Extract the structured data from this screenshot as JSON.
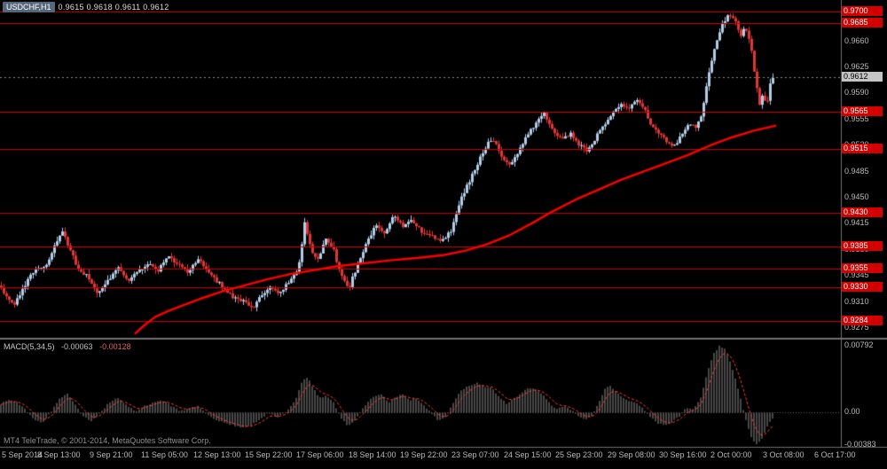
{
  "window": {
    "symbol_tab": "USDCHF,H1",
    "ohlc_text": "0.9615 0.9618 0.9611 0.9612"
  },
  "colors": {
    "background": "#000000",
    "bull": "#b3cde8",
    "bear": "#e03636",
    "ma_line": "#ff0000",
    "hline": "#cc0000",
    "hline_badge_bg": "#d40000",
    "price_badge_bg": "#c4c4c4",
    "scale_text": "#b9b9b9",
    "separator": "#707070",
    "macd_hist": "#484848",
    "macd_signal": "#ff3b3b"
  },
  "price_scale": {
    "ticks": [
      "0.9660",
      "0.9625",
      "0.9590",
      "0.9555",
      "0.9520",
      "0.9485",
      "0.9450",
      "0.9415",
      "0.9380",
      "0.9345",
      "0.9310",
      "0.9275"
    ],
    "level_badges": [
      "0.9700",
      "0.9685",
      "0.9565",
      "0.9515",
      "0.9430",
      "0.9385",
      "0.9355",
      "0.9330",
      "0.9284"
    ],
    "current_badge": "0.9612"
  },
  "time_axis": {
    "labels": [
      "5 Sep 2014",
      "8 Sep 13:00",
      "9 Sep 21:00",
      "11 Sep 05:00",
      "12 Sep 13:00",
      "15 Sep 22:00",
      "17 Sep 06:00",
      "18 Sep 14:00",
      "19 Sep 22:00",
      "23 Sep 07:00",
      "24 Sep 15:00",
      "25 Sep 23:00",
      "29 Sep 08:00",
      "30 Sep 16:00",
      "2 Oct 00:00",
      "3 Oct 08:00",
      "6 Oct 17:00"
    ]
  },
  "macd_panel": {
    "label": "MACD(5,34,5)",
    "value_main": "-0.00063",
    "value_signal": "-0.00128",
    "scale": [
      "0.00792",
      "0.00",
      "-0.00383"
    ]
  },
  "footer": {
    "copyright": "MT4 TeleTrade, © 2001-2014, MetaQuotes Software Corp."
  },
  "chart_data": [
    {
      "type": "candlestick",
      "symbol": "USDCHF",
      "timeframe": "H1",
      "title": "USDCHF,H1",
      "header_ohlc": {
        "open": 0.9615,
        "high": 0.9618,
        "low": 0.9611,
        "close": 0.9612
      },
      "bid": 0.9612,
      "ylim": [
        0.92655,
        0.9706
      ],
      "grid": "off",
      "y_tick_labels": [
        0.966,
        0.9625,
        0.959,
        0.9555,
        0.952,
        0.9485,
        0.945,
        0.9415,
        0.938,
        0.9345,
        0.931,
        0.9275
      ],
      "hlines": [
        0.97,
        0.9685,
        0.9565,
        0.9515,
        0.943,
        0.9385,
        0.9355,
        0.933,
        0.9284
      ],
      "ma_note": "thick red rising moving-average line",
      "x_tick_labels": [
        "5 Sep 2014",
        "8 Sep 13:00",
        "9 Sep 21:00",
        "11 Sep 05:00",
        "12 Sep 13:00",
        "15 Sep 22:00",
        "17 Sep 06:00",
        "18 Sep 14:00",
        "19 Sep 22:00",
        "23 Sep 07:00",
        "24 Sep 15:00",
        "25 Sep 23:00",
        "29 Sep 08:00",
        "30 Sep 16:00",
        "2 Oct 00:00",
        "3 Oct 08:00",
        "6 Oct 17:00"
      ],
      "close_path": [
        [
          0,
          0.9332
        ],
        [
          10,
          0.9318
        ],
        [
          18,
          0.9306
        ],
        [
          28,
          0.933
        ],
        [
          40,
          0.9352
        ],
        [
          55,
          0.9361
        ],
        [
          65,
          0.9392
        ],
        [
          72,
          0.9404
        ],
        [
          80,
          0.9381
        ],
        [
          90,
          0.9353
        ],
        [
          100,
          0.9346
        ],
        [
          112,
          0.9322
        ],
        [
          125,
          0.9342
        ],
        [
          135,
          0.9356
        ],
        [
          145,
          0.9338
        ],
        [
          158,
          0.9352
        ],
        [
          170,
          0.9363
        ],
        [
          180,
          0.9351
        ],
        [
          190,
          0.9372
        ],
        [
          202,
          0.936
        ],
        [
          214,
          0.9351
        ],
        [
          226,
          0.9366
        ],
        [
          238,
          0.9349
        ],
        [
          250,
          0.9333
        ],
        [
          262,
          0.9319
        ],
        [
          275,
          0.9311
        ],
        [
          288,
          0.9303
        ],
        [
          296,
          0.9319
        ],
        [
          306,
          0.9333
        ],
        [
          316,
          0.9321
        ],
        [
          326,
          0.9336
        ],
        [
          338,
          0.9352
        ],
        [
          345,
          0.9416
        ],
        [
          352,
          0.9381
        ],
        [
          360,
          0.9366
        ],
        [
          368,
          0.9396
        ],
        [
          376,
          0.9386
        ],
        [
          386,
          0.9346
        ],
        [
          395,
          0.9329
        ],
        [
          405,
          0.9361
        ],
        [
          415,
          0.9391
        ],
        [
          425,
          0.9413
        ],
        [
          435,
          0.9401
        ],
        [
          445,
          0.9426
        ],
        [
          455,
          0.9411
        ],
        [
          465,
          0.9421
        ],
        [
          476,
          0.9406
        ],
        [
          488,
          0.9399
        ],
        [
          500,
          0.9393
        ],
        [
          510,
          0.9406
        ],
        [
          520,
          0.9446
        ],
        [
          530,
          0.9471
        ],
        [
          540,
          0.9496
        ],
        [
          550,
          0.9521
        ],
        [
          558,
          0.9528
        ],
        [
          566,
          0.9506
        ],
        [
          576,
          0.9496
        ],
        [
          586,
          0.9511
        ],
        [
          596,
          0.9536
        ],
        [
          606,
          0.9551
        ],
        [
          615,
          0.9563
        ],
        [
          625,
          0.9541
        ],
        [
          635,
          0.9526
        ],
        [
          645,
          0.9536
        ],
        [
          655,
          0.9521
        ],
        [
          663,
          0.9511
        ],
        [
          671,
          0.9526
        ],
        [
          681,
          0.9546
        ],
        [
          691,
          0.9563
        ],
        [
          701,
          0.9576
        ],
        [
          710,
          0.9569
        ],
        [
          718,
          0.9581
        ],
        [
          726,
          0.9573
        ],
        [
          735,
          0.9551
        ],
        [
          745,
          0.9536
        ],
        [
          755,
          0.9523
        ],
        [
          762,
          0.9519
        ],
        [
          770,
          0.9536
        ],
        [
          778,
          0.9549
        ],
        [
          786,
          0.9543
        ],
        [
          793,
          0.9561
        ],
        [
          800,
          0.9612
        ],
        [
          808,
          0.9656
        ],
        [
          815,
          0.9681
        ],
        [
          822,
          0.9693
        ],
        [
          830,
          0.9689
        ],
        [
          836,
          0.9666
        ],
        [
          842,
          0.9681
        ],
        [
          848,
          0.9656
        ],
        [
          854,
          0.9601
        ],
        [
          858,
          0.9576
        ],
        [
          862,
          0.9589
        ],
        [
          866,
          0.9571
        ],
        [
          870,
          0.9601
        ],
        [
          874,
          0.9612
        ]
      ],
      "ma_path": [
        [
          152,
          0.9267
        ],
        [
          162,
          0.9278
        ],
        [
          175,
          0.929
        ],
        [
          190,
          0.9298
        ],
        [
          205,
          0.9305
        ],
        [
          225,
          0.9314
        ],
        [
          250,
          0.9324
        ],
        [
          275,
          0.9332
        ],
        [
          300,
          0.934
        ],
        [
          325,
          0.9347
        ],
        [
          350,
          0.9352
        ],
        [
          380,
          0.9358
        ],
        [
          410,
          0.9362
        ],
        [
          440,
          0.9366
        ],
        [
          470,
          0.9369
        ],
        [
          500,
          0.9373
        ],
        [
          525,
          0.9379
        ],
        [
          550,
          0.9388
        ],
        [
          575,
          0.94
        ],
        [
          600,
          0.9416
        ],
        [
          625,
          0.9433
        ],
        [
          650,
          0.9448
        ],
        [
          675,
          0.9461
        ],
        [
          700,
          0.9474
        ],
        [
          725,
          0.9485
        ],
        [
          750,
          0.9496
        ],
        [
          775,
          0.9507
        ],
        [
          800,
          0.952
        ],
        [
          825,
          0.9531
        ],
        [
          850,
          0.954
        ],
        [
          875,
          0.9547
        ]
      ]
    },
    {
      "type": "bar",
      "name": "MACD(5,34,5)",
      "current_main": -0.00063,
      "current_signal": -0.00128,
      "ylim": [
        -0.00395,
        0.00805
      ],
      "y_ticks": [
        0.00792,
        0.0,
        -0.00383
      ],
      "legend": "dark histogram = MACD main, red dashed = signal",
      "macd_path": [
        [
          0,
          0.0008
        ],
        [
          10,
          0.0015
        ],
        [
          20,
          0.0013
        ],
        [
          30,
          0.0005
        ],
        [
          40,
          -0.0008
        ],
        [
          50,
          -0.0012
        ],
        [
          60,
          0.0002
        ],
        [
          70,
          0.0018
        ],
        [
          78,
          0.0022
        ],
        [
          88,
          0.0008
        ],
        [
          95,
          -0.0004
        ],
        [
          105,
          -0.001
        ],
        [
          115,
          0
        ],
        [
          125,
          0.0012
        ],
        [
          135,
          0.0018
        ],
        [
          145,
          0.0008
        ],
        [
          155,
          0.0002
        ],
        [
          165,
          0.0008
        ],
        [
          175,
          0.0012
        ],
        [
          185,
          0.0015
        ],
        [
          195,
          0.0008
        ],
        [
          205,
          0.0002
        ],
        [
          215,
          0.0005
        ],
        [
          225,
          0.0008
        ],
        [
          235,
          -0.0002
        ],
        [
          245,
          -0.0008
        ],
        [
          255,
          -0.0012
        ],
        [
          265,
          -0.0015
        ],
        [
          275,
          -0.0018
        ],
        [
          285,
          -0.0015
        ],
        [
          295,
          -0.0008
        ],
        [
          305,
          0
        ],
        [
          315,
          -0.0005
        ],
        [
          325,
          0.0002
        ],
        [
          335,
          0.0015
        ],
        [
          343,
          0.0038
        ],
        [
          349,
          0.0042
        ],
        [
          355,
          0.003
        ],
        [
          362,
          0.0018
        ],
        [
          370,
          0.002
        ],
        [
          378,
          0.0012
        ],
        [
          386,
          -0.0005
        ],
        [
          393,
          -0.0015
        ],
        [
          400,
          -0.0012
        ],
        [
          408,
          0
        ],
        [
          416,
          0.0012
        ],
        [
          424,
          0.002
        ],
        [
          432,
          0.0022
        ],
        [
          440,
          0.0012
        ],
        [
          448,
          0.0018
        ],
        [
          456,
          0.0022
        ],
        [
          464,
          0.0015
        ],
        [
          472,
          0.0017
        ],
        [
          480,
          0.0008
        ],
        [
          488,
          0
        ],
        [
          496,
          -0.001
        ],
        [
          504,
          -0.0006
        ],
        [
          512,
          0.001
        ],
        [
          520,
          0.0025
        ],
        [
          530,
          0.0032
        ],
        [
          540,
          0.0035
        ],
        [
          549,
          0.0031
        ],
        [
          557,
          0.0029
        ],
        [
          565,
          0.0018
        ],
        [
          573,
          0.0011
        ],
        [
          581,
          0.0016
        ],
        [
          589,
          0.0023
        ],
        [
          597,
          0.0029
        ],
        [
          605,
          0.0029
        ],
        [
          613,
          0.0023
        ],
        [
          621,
          0.0012
        ],
        [
          629,
          0.0004
        ],
        [
          637,
          0.0008
        ],
        [
          645,
          0.0004
        ],
        [
          653,
          -0.0003
        ],
        [
          661,
          -0.0008
        ],
        [
          669,
          -0.0004
        ],
        [
          677,
          0.0012
        ],
        [
          684,
          0.0028
        ],
        [
          690,
          0.0032
        ],
        [
          697,
          0.0024
        ],
        [
          704,
          0.0017
        ],
        [
          712,
          0.0014
        ],
        [
          720,
          0.0011
        ],
        [
          728,
          0.0004
        ],
        [
          736,
          -0.0006
        ],
        [
          744,
          -0.0013
        ],
        [
          752,
          -0.0015
        ],
        [
          760,
          -0.0011
        ],
        [
          768,
          -0.0004
        ],
        [
          776,
          0.0006
        ],
        [
          784,
          0.0004
        ],
        [
          792,
          0.0018
        ],
        [
          800,
          0.005
        ],
        [
          807,
          0.0071
        ],
        [
          813,
          0.0079
        ],
        [
          819,
          0.0076
        ],
        [
          825,
          0.0061
        ],
        [
          831,
          0.0041
        ],
        [
          837,
          0.0016
        ],
        [
          843,
          -0.0009
        ],
        [
          849,
          -0.0029
        ],
        [
          855,
          -0.0038
        ],
        [
          861,
          -0.0031
        ],
        [
          867,
          -0.0016
        ],
        [
          874,
          -0.0006
        ]
      ]
    }
  ]
}
